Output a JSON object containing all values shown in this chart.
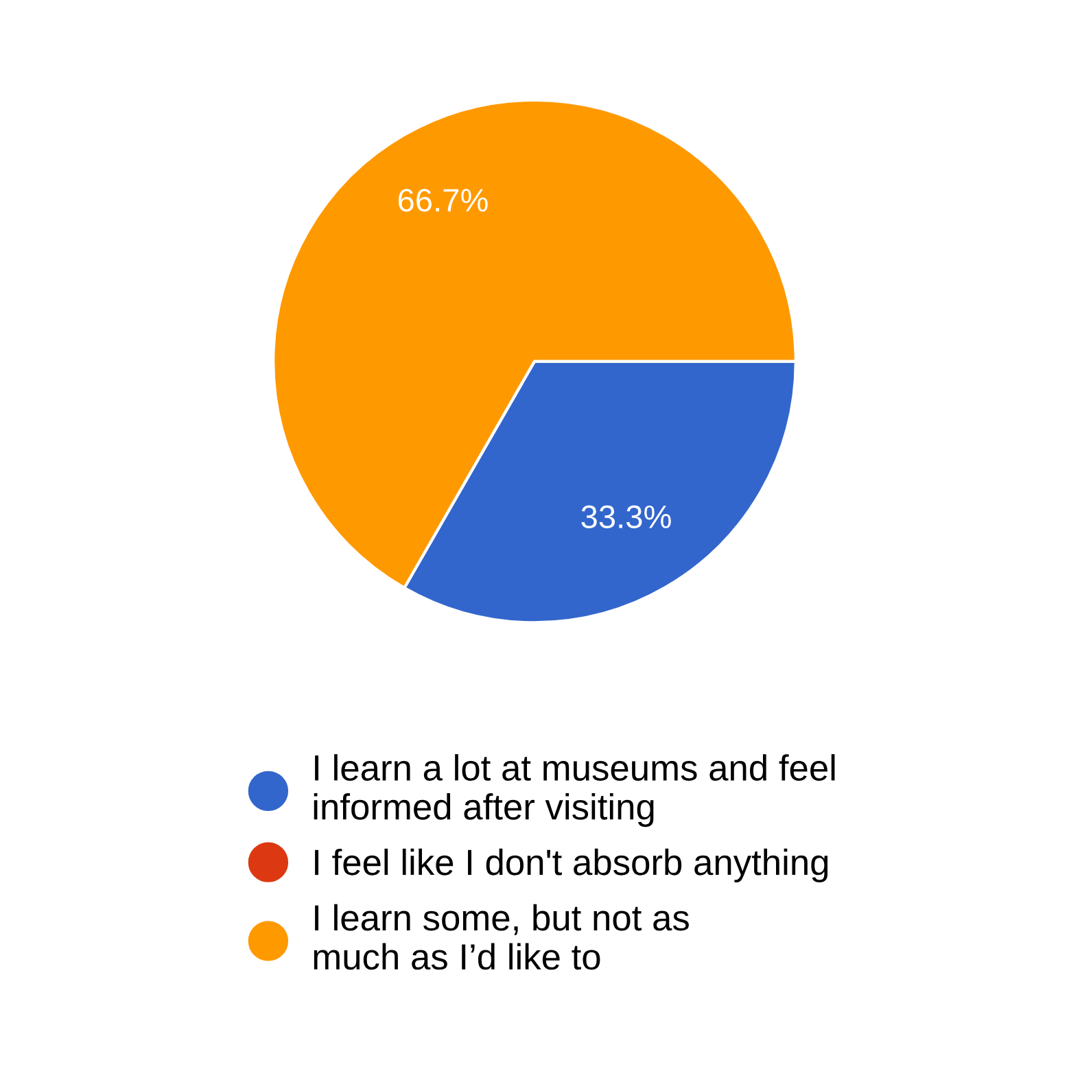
{
  "chart_data": {
    "type": "pie",
    "categories": [
      "I learn a lot at museums and feel\ninformed after visiting",
      "I feel like I don't absorb anything",
      "I learn some, but not as\nmuch as I’d like to"
    ],
    "values": [
      33.3,
      0,
      66.7
    ],
    "colors": [
      "#3366cc",
      "#dc3912",
      "#ff9900"
    ],
    "value_labels": [
      "33.3%",
      null,
      "66.7%"
    ],
    "legend": "bottom"
  }
}
